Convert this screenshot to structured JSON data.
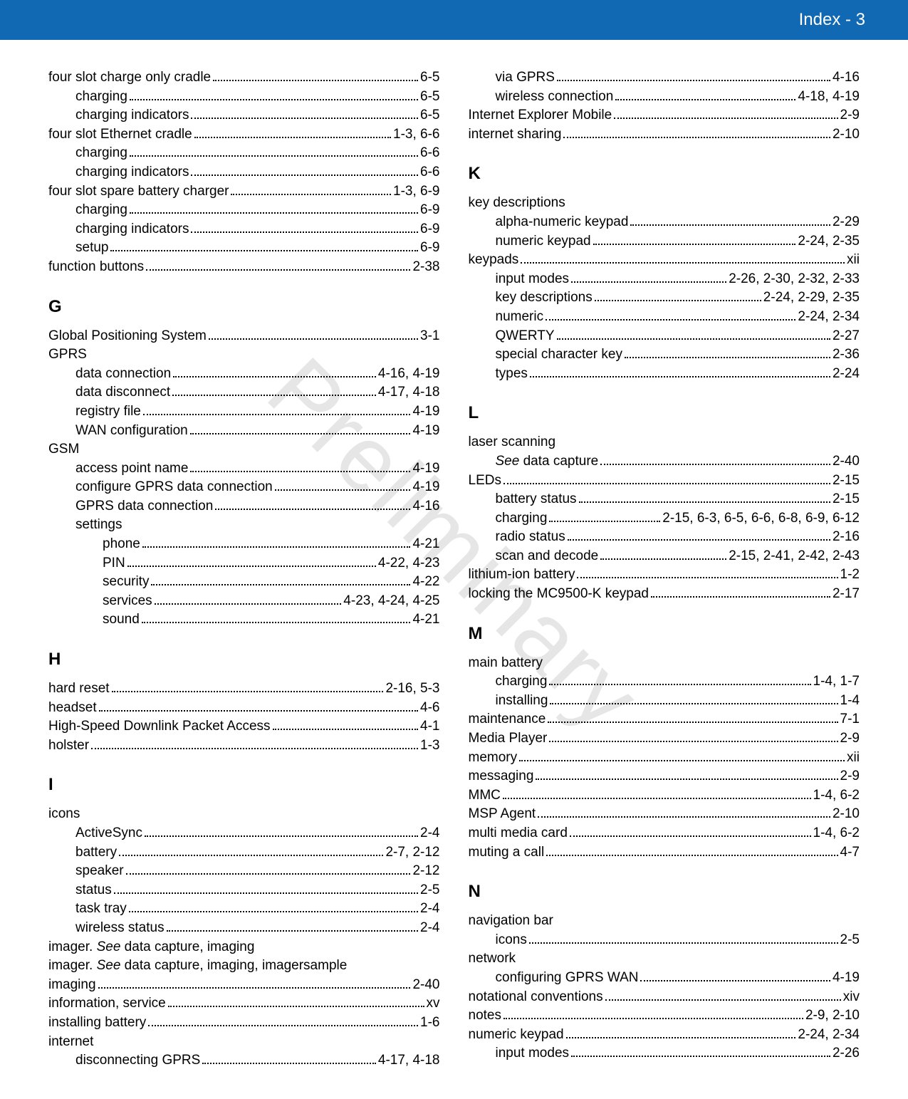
{
  "header": "Index - 3",
  "watermark": "Preliminary",
  "colors": {
    "header_bg": "#1168b3",
    "header_text": "#ffffff",
    "body_text": "#000000",
    "watermark": "#e6e6e6",
    "background": "#ffffff"
  },
  "typography": {
    "body_fontsize_pt": 14,
    "heading_fontsize_pt": 18,
    "header_fontsize_pt": 18
  },
  "left": [
    {
      "type": "entry",
      "indent": 0,
      "label": "four slot charge only cradle",
      "pages": "6-5"
    },
    {
      "type": "entry",
      "indent": 1,
      "label": "charging",
      "pages": "6-5"
    },
    {
      "type": "entry",
      "indent": 1,
      "label": "charging indicators",
      "pages": "6-5"
    },
    {
      "type": "entry",
      "indent": 0,
      "label": "four slot Ethernet cradle",
      "pages": "1-3, 6-6"
    },
    {
      "type": "entry",
      "indent": 1,
      "label": "charging",
      "pages": "6-6"
    },
    {
      "type": "entry",
      "indent": 1,
      "label": "charging indicators",
      "pages": "6-6"
    },
    {
      "type": "entry",
      "indent": 0,
      "label": "four slot spare battery charger",
      "pages": "1-3, 6-9"
    },
    {
      "type": "entry",
      "indent": 1,
      "label": "charging",
      "pages": "6-9"
    },
    {
      "type": "entry",
      "indent": 1,
      "label": "charging indicators",
      "pages": "6-9"
    },
    {
      "type": "entry",
      "indent": 1,
      "label": "setup",
      "pages": "6-9"
    },
    {
      "type": "entry",
      "indent": 0,
      "label": "function buttons",
      "pages": "2-38"
    },
    {
      "type": "heading",
      "text": "G"
    },
    {
      "type": "entry",
      "indent": 0,
      "label": "Global Positioning System",
      "pages": "3-1"
    },
    {
      "type": "entry",
      "indent": 0,
      "label": "GPRS",
      "pages": "",
      "noline": true
    },
    {
      "type": "entry",
      "indent": 1,
      "label": "data connection",
      "pages": "4-16, 4-19"
    },
    {
      "type": "entry",
      "indent": 1,
      "label": "data disconnect",
      "pages": "4-17, 4-18"
    },
    {
      "type": "entry",
      "indent": 1,
      "label": "registry file",
      "pages": "4-19"
    },
    {
      "type": "entry",
      "indent": 1,
      "label": "WAN configuration",
      "pages": "4-19"
    },
    {
      "type": "entry",
      "indent": 0,
      "label": "GSM",
      "pages": "",
      "noline": true
    },
    {
      "type": "entry",
      "indent": 1,
      "label": "access point name",
      "pages": "4-19"
    },
    {
      "type": "entry",
      "indent": 1,
      "label": "configure GPRS data connection",
      "pages": "4-19"
    },
    {
      "type": "entry",
      "indent": 1,
      "label": "GPRS data connection",
      "pages": "4-16"
    },
    {
      "type": "entry",
      "indent": 1,
      "label": "settings",
      "pages": "",
      "noline": true
    },
    {
      "type": "entry",
      "indent": 2,
      "label": "phone",
      "pages": "4-21"
    },
    {
      "type": "entry",
      "indent": 2,
      "label": "PIN",
      "pages": "4-22, 4-23"
    },
    {
      "type": "entry",
      "indent": 2,
      "label": "security",
      "pages": "4-22"
    },
    {
      "type": "entry",
      "indent": 2,
      "label": "services",
      "pages": "4-23, 4-24, 4-25"
    },
    {
      "type": "entry",
      "indent": 2,
      "label": "sound",
      "pages": "4-21"
    },
    {
      "type": "heading",
      "text": "H"
    },
    {
      "type": "entry",
      "indent": 0,
      "label": "hard reset",
      "pages": "2-16, 5-3"
    },
    {
      "type": "entry",
      "indent": 0,
      "label": "headset",
      "pages": "4-6"
    },
    {
      "type": "entry",
      "indent": 0,
      "label": "High-Speed Downlink Packet Access",
      "pages": "4-1"
    },
    {
      "type": "entry",
      "indent": 0,
      "label": "holster",
      "pages": "1-3"
    },
    {
      "type": "heading",
      "text": "I"
    },
    {
      "type": "entry",
      "indent": 0,
      "label": "icons",
      "pages": "",
      "noline": true
    },
    {
      "type": "entry",
      "indent": 1,
      "label": "ActiveSync",
      "pages": "2-4"
    },
    {
      "type": "entry",
      "indent": 1,
      "label": "battery",
      "pages": "2-7, 2-12"
    },
    {
      "type": "entry",
      "indent": 1,
      "label": "speaker",
      "pages": "2-12"
    },
    {
      "type": "entry",
      "indent": 1,
      "label": "status",
      "pages": "2-5"
    },
    {
      "type": "entry",
      "indent": 1,
      "label": "task tray",
      "pages": "2-4"
    },
    {
      "type": "entry",
      "indent": 1,
      "label": "wireless status",
      "pages": "2-4"
    },
    {
      "type": "entry",
      "indent": 0,
      "label": "imager. ",
      "see": "See",
      "post": " data capture, imaging",
      "pages": "",
      "noline": true
    },
    {
      "type": "entry",
      "indent": 0,
      "label": "imager. ",
      "see": "See",
      "post": " data capture, imaging, imagersample",
      "pages": "",
      "noline": true
    },
    {
      "type": "entry",
      "indent": 0,
      "label": "imaging",
      "pages": "2-40"
    },
    {
      "type": "entry",
      "indent": 0,
      "label": "information, service",
      "pages": "xv"
    },
    {
      "type": "entry",
      "indent": 0,
      "label": "installing battery",
      "pages": "1-6"
    },
    {
      "type": "entry",
      "indent": 0,
      "label": "internet",
      "pages": "",
      "noline": true
    },
    {
      "type": "entry",
      "indent": 1,
      "label": "disconnecting GPRS",
      "pages": "4-17, 4-18"
    }
  ],
  "right": [
    {
      "type": "entry",
      "indent": 1,
      "label": "via GPRS",
      "pages": "4-16"
    },
    {
      "type": "entry",
      "indent": 1,
      "label": "wireless connection",
      "pages": "4-18, 4-19"
    },
    {
      "type": "entry",
      "indent": 0,
      "label": "Internet Explorer Mobile",
      "pages": "2-9"
    },
    {
      "type": "entry",
      "indent": 0,
      "label": "internet sharing",
      "pages": "2-10"
    },
    {
      "type": "heading",
      "text": "K"
    },
    {
      "type": "entry",
      "indent": 0,
      "label": "key descriptions",
      "pages": "",
      "noline": true
    },
    {
      "type": "entry",
      "indent": 1,
      "label": "alpha-numeric keypad",
      "pages": "2-29"
    },
    {
      "type": "entry",
      "indent": 1,
      "label": "numeric keypad",
      "pages": "2-24, 2-35"
    },
    {
      "type": "entry",
      "indent": 0,
      "label": "keypads",
      "pages": "xii"
    },
    {
      "type": "entry",
      "indent": 1,
      "label": "input modes",
      "pages": "2-26, 2-30, 2-32, 2-33"
    },
    {
      "type": "entry",
      "indent": 1,
      "label": "key descriptions",
      "pages": "2-24, 2-29, 2-35"
    },
    {
      "type": "entry",
      "indent": 1,
      "label": "numeric",
      "pages": "2-24, 2-34"
    },
    {
      "type": "entry",
      "indent": 1,
      "label": "QWERTY",
      "pages": "2-27"
    },
    {
      "type": "entry",
      "indent": 1,
      "label": "special character key",
      "pages": "2-36"
    },
    {
      "type": "entry",
      "indent": 1,
      "label": "types",
      "pages": "2-24"
    },
    {
      "type": "heading",
      "text": "L"
    },
    {
      "type": "entry",
      "indent": 0,
      "label": "laser scanning",
      "pages": "",
      "noline": true
    },
    {
      "type": "entry",
      "indent": 1,
      "see": "See",
      "post": " data capture",
      "label": "",
      "pages": "2-40"
    },
    {
      "type": "entry",
      "indent": 0,
      "label": "LEDs",
      "pages": "2-15"
    },
    {
      "type": "entry",
      "indent": 1,
      "label": "battery status",
      "pages": "2-15"
    },
    {
      "type": "entry",
      "indent": 1,
      "label": "charging",
      "pages": "2-15, 6-3, 6-5, 6-6, 6-8, 6-9, 6-12"
    },
    {
      "type": "entry",
      "indent": 1,
      "label": "radio status",
      "pages": "2-16"
    },
    {
      "type": "entry",
      "indent": 1,
      "label": "scan and decode",
      "pages": "2-15, 2-41, 2-42, 2-43"
    },
    {
      "type": "entry",
      "indent": 0,
      "label": "lithium-ion battery",
      "pages": "1-2"
    },
    {
      "type": "entry",
      "indent": 0,
      "label": "locking the MC9500-K keypad",
      "pages": "2-17"
    },
    {
      "type": "heading",
      "text": "M"
    },
    {
      "type": "entry",
      "indent": 0,
      "label": "main battery",
      "pages": "",
      "noline": true
    },
    {
      "type": "entry",
      "indent": 1,
      "label": "charging",
      "pages": "1-4, 1-7"
    },
    {
      "type": "entry",
      "indent": 1,
      "label": "installing",
      "pages": "1-4"
    },
    {
      "type": "entry",
      "indent": 0,
      "label": "maintenance",
      "pages": "7-1"
    },
    {
      "type": "entry",
      "indent": 0,
      "label": "Media Player",
      "pages": "2-9"
    },
    {
      "type": "entry",
      "indent": 0,
      "label": "memory",
      "pages": "xii"
    },
    {
      "type": "entry",
      "indent": 0,
      "label": "messaging",
      "pages": "2-9"
    },
    {
      "type": "entry",
      "indent": 0,
      "label": "MMC",
      "pages": "1-4, 6-2"
    },
    {
      "type": "entry",
      "indent": 0,
      "label": "MSP Agent",
      "pages": "2-10"
    },
    {
      "type": "entry",
      "indent": 0,
      "label": "multi media card",
      "pages": "1-4, 6-2"
    },
    {
      "type": "entry",
      "indent": 0,
      "label": "muting a call",
      "pages": "4-7"
    },
    {
      "type": "heading",
      "text": "N"
    },
    {
      "type": "entry",
      "indent": 0,
      "label": "navigation bar",
      "pages": "",
      "noline": true
    },
    {
      "type": "entry",
      "indent": 1,
      "label": "icons",
      "pages": "2-5"
    },
    {
      "type": "entry",
      "indent": 0,
      "label": "network",
      "pages": "",
      "noline": true
    },
    {
      "type": "entry",
      "indent": 1,
      "label": "configuring GPRS WAN",
      "pages": "4-19"
    },
    {
      "type": "entry",
      "indent": 0,
      "label": "notational conventions",
      "pages": "xiv"
    },
    {
      "type": "entry",
      "indent": 0,
      "label": "notes",
      "pages": "2-9, 2-10"
    },
    {
      "type": "entry",
      "indent": 0,
      "label": "numeric keypad",
      "pages": "2-24, 2-34"
    },
    {
      "type": "entry",
      "indent": 1,
      "label": "input modes",
      "pages": "2-26"
    }
  ]
}
